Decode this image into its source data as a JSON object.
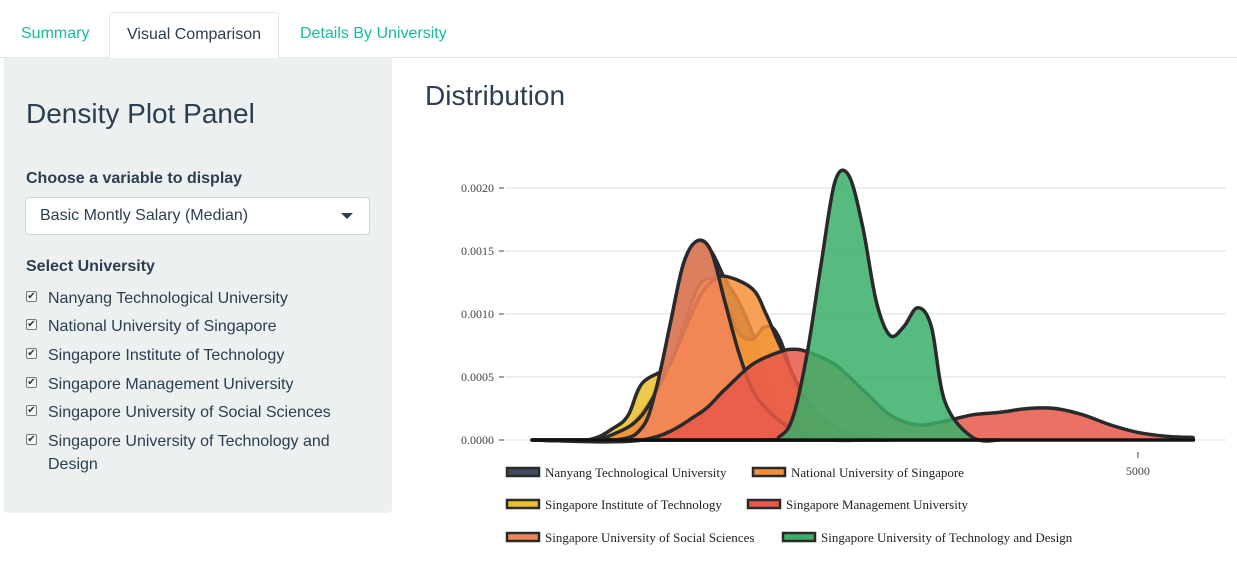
{
  "tabs": [
    {
      "label": "Summary"
    },
    {
      "label": "Visual Comparison"
    },
    {
      "label": "Details By University"
    }
  ],
  "sidebar": {
    "title": "Density Plot Panel",
    "variable_label": "Choose a variable to display",
    "variable_selected": "Basic Montly Salary (Median)",
    "university_label": "Select University",
    "universities": [
      {
        "label": "Nanyang Technological University",
        "checked": true
      },
      {
        "label": "National University of Singapore",
        "checked": true
      },
      {
        "label": "Singapore Institute of Technology",
        "checked": true
      },
      {
        "label": "Singapore Management University",
        "checked": true
      },
      {
        "label": "Singapore University of Social Sciences",
        "checked": true
      },
      {
        "label": "Singapore University of Technology and Design",
        "checked": true
      }
    ]
  },
  "main": {
    "title": "Distribution"
  },
  "chart_data": {
    "type": "area",
    "ylim": [
      0,
      0.0022
    ],
    "xlim": [
      2700,
      5300
    ],
    "yticks": [
      "0.0000",
      "0.0005",
      "0.0010",
      "0.0015",
      "0.0020"
    ],
    "xticks": [
      "5000"
    ],
    "series": [
      {
        "name": "Nanyang Technological University",
        "color": "#3d4a5c",
        "x": [
          2800,
          3050,
          3150,
          3250,
          3300,
          3350,
          3400,
          3450,
          3500,
          3550,
          3600,
          3650,
          3700,
          3800,
          3900,
          4000
        ],
        "y": [
          0,
          0,
          0.0001,
          0.0004,
          0.0009,
          0.0014,
          0.00158,
          0.0015,
          0.00128,
          0.0011,
          0.00085,
          0.0005,
          0.0002,
          5e-05,
          0,
          0
        ]
      },
      {
        "name": "National University of Singapore",
        "color": "#f5903a",
        "x": [
          2800,
          3000,
          3100,
          3200,
          3300,
          3400,
          3450,
          3500,
          3600,
          3650,
          3700,
          3800,
          3900,
          4000,
          4100
        ],
        "y": [
          0,
          0,
          5e-05,
          0.0002,
          0.0006,
          0.0011,
          0.00125,
          0.0013,
          0.0012,
          0.001,
          0.00075,
          0.0003,
          0.0001,
          2e-05,
          0
        ]
      },
      {
        "name": "Singapore Institute of Technology",
        "color": "#e9c02b",
        "x": [
          2800,
          3000,
          3100,
          3150,
          3200,
          3300,
          3350,
          3400,
          3450,
          3500,
          3550,
          3600,
          3650,
          3700,
          3800,
          3900,
          4000
        ],
        "y": [
          0,
          0,
          0.0001,
          0.0002,
          0.00045,
          0.0006,
          0.0009,
          0.0012,
          0.00128,
          0.0011,
          0.00085,
          0.0008,
          0.0009,
          0.0008,
          0.0002,
          3e-05,
          0
        ]
      },
      {
        "name": "Singapore Management University",
        "color": "#e8584a",
        "x": [
          2800,
          3200,
          3400,
          3500,
          3600,
          3700,
          3750,
          3800,
          3900,
          4000,
          4100,
          4200,
          4300,
          4400,
          4500,
          4600,
          4700,
          4800,
          4900,
          5000,
          5100,
          5200
        ],
        "y": [
          0,
          0,
          0.0002,
          0.0004,
          0.0006,
          0.0007,
          0.00072,
          0.0007,
          0.0006,
          0.0004,
          0.0002,
          0.00012,
          0.00015,
          0.0002,
          0.00022,
          0.00025,
          0.00025,
          0.0002,
          0.00012,
          6e-05,
          3e-05,
          2e-05
        ]
      },
      {
        "name": "Singapore University of Social Sciences",
        "color": "#f2845a",
        "x": [
          2800,
          3100,
          3200,
          3250,
          3300,
          3350,
          3400,
          3450,
          3500,
          3550,
          3600,
          3650,
          3700,
          3750,
          3800,
          3900
        ],
        "y": [
          0,
          0,
          0.0001,
          0.0004,
          0.0009,
          0.0014,
          0.00158,
          0.0015,
          0.0011,
          0.0007,
          0.0004,
          0.00025,
          0.00015,
          8e-05,
          3e-05,
          0
        ]
      },
      {
        "name": "Singapore University of Technology and Design",
        "color": "#3aaf6a",
        "x": [
          2800,
          3600,
          3700,
          3750,
          3800,
          3850,
          3900,
          3950,
          4000,
          4050,
          4100,
          4150,
          4200,
          4250,
          4300,
          4400,
          4500
        ],
        "y": [
          0,
          0,
          3e-05,
          0.0002,
          0.0007,
          0.0014,
          0.00205,
          0.0021,
          0.0017,
          0.0011,
          0.00083,
          0.0009,
          0.00105,
          0.0009,
          0.0003,
          2e-05,
          0
        ]
      }
    ]
  }
}
